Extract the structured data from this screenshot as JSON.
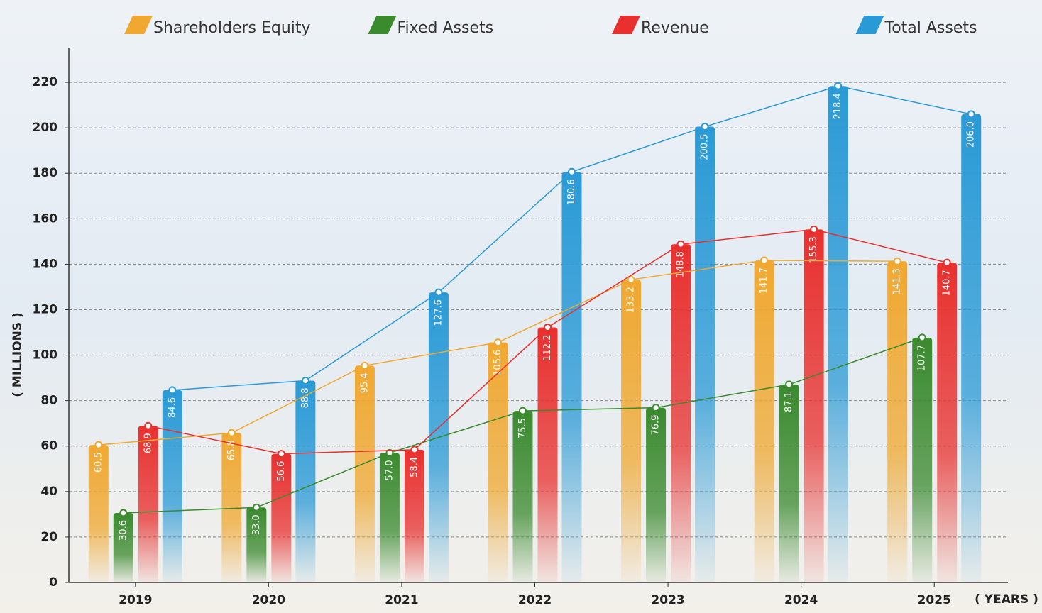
{
  "chart_data": {
    "type": "bar",
    "y_label": "( MILLIONS )",
    "x_label": "( YEARS )",
    "categories": [
      "2019",
      "2020",
      "2021",
      "2022",
      "2023",
      "2024",
      "2025"
    ],
    "series": [
      {
        "name": "Shareholders Equity",
        "color": "#f0a830",
        "values": [
          60.5,
          65.8,
          95.4,
          105.6,
          133.2,
          141.7,
          141.3
        ],
        "value_labels": [
          "60.5",
          "65.8",
          "95.4",
          "105.6",
          "133.2",
          "141.7",
          "141.3"
        ]
      },
      {
        "name": "Fixed Assets",
        "color": "#3a8a2e",
        "values": [
          30.6,
          33.0,
          57.0,
          75.5,
          76.9,
          87.1,
          107.7
        ],
        "value_labels": [
          "30.6",
          "33.0",
          "57.0",
          "75.5",
          "76.9",
          "87.1",
          "107.7"
        ]
      },
      {
        "name": "Revenue",
        "color": "#e8302e",
        "values": [
          68.9,
          56.6,
          58.4,
          112.2,
          148.8,
          155.3,
          140.7
        ],
        "value_labels": [
          "68.9",
          "56.6",
          "58.4",
          "112.2",
          "148.8",
          "155.3",
          "140.7"
        ]
      },
      {
        "name": "Total Assets",
        "color": "#2a9ad6",
        "values": [
          84.6,
          88.8,
          127.6,
          180.6,
          200.5,
          218.4,
          206.0
        ],
        "value_labels": [
          "84.6",
          "88.8",
          "127.6",
          "180.6",
          "200.5",
          "218.4",
          "206.0"
        ]
      }
    ],
    "ylim": [
      0,
      235
    ],
    "yticks": [
      0,
      20,
      40,
      60,
      80,
      100,
      120,
      140,
      160,
      180,
      200,
      220
    ],
    "grid": true
  }
}
